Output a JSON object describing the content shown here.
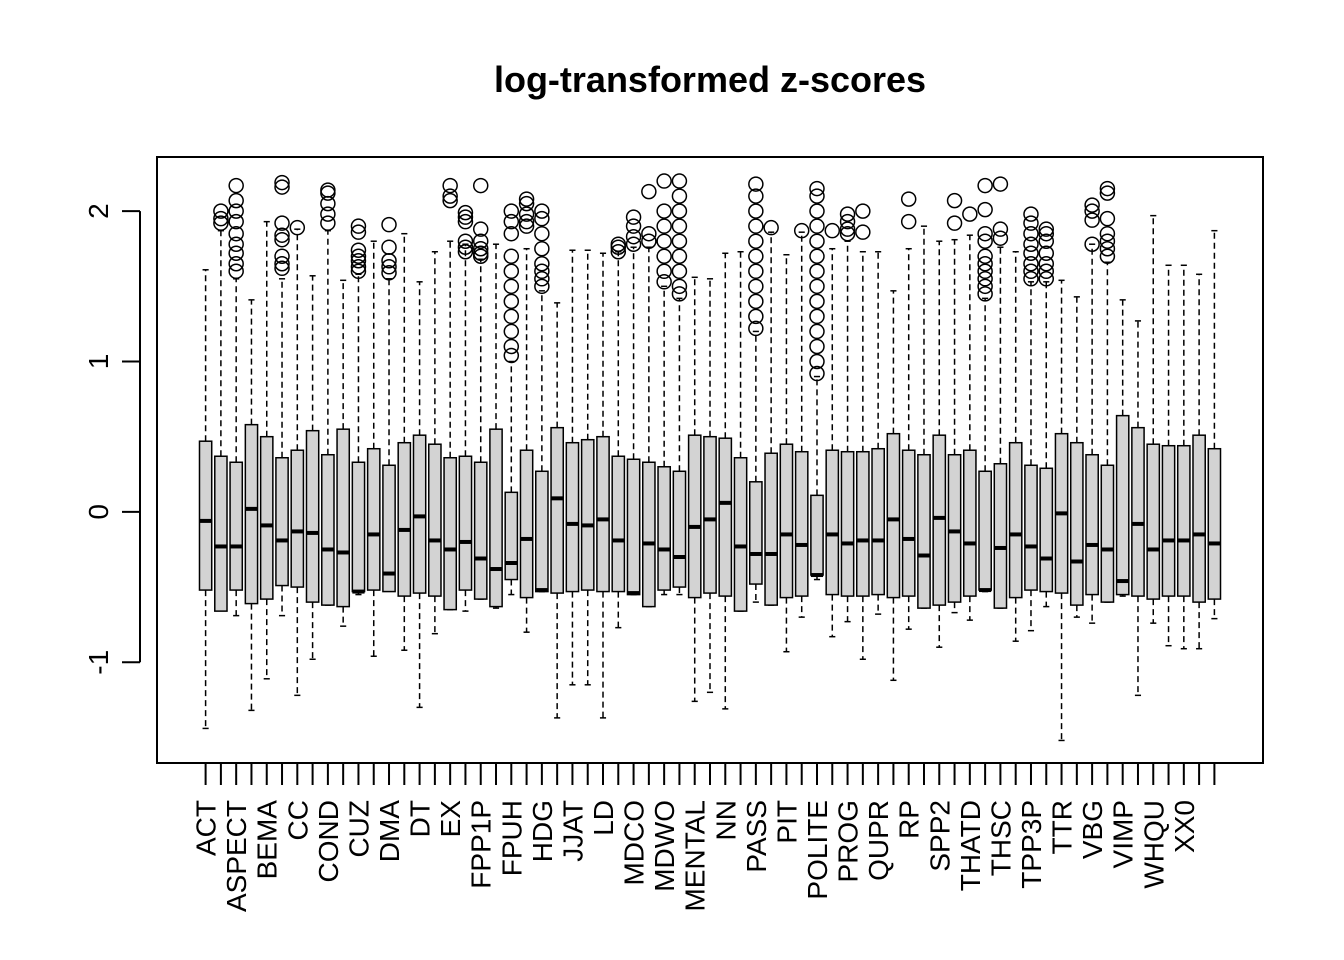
{
  "chart_data": {
    "type": "boxplot",
    "title": "log-transformed z-scores",
    "categories": [
      "ACT",
      null,
      "ASPECT",
      null,
      "BEMA",
      null,
      "CC",
      null,
      "COND",
      null,
      "CUZ",
      null,
      "DMA",
      null,
      "DT",
      null,
      "EX",
      null,
      "FPP1P",
      null,
      "FPUH",
      null,
      "HDG",
      null,
      "JJAT",
      null,
      "LD",
      null,
      "MDCO",
      null,
      "MDWO",
      null,
      "MENTAL",
      null,
      "NN",
      null,
      "PASS",
      null,
      "PIT",
      null,
      "POLITE",
      null,
      "PROG",
      null,
      "QUPR",
      null,
      "RP",
      null,
      "SPP2",
      null,
      "THATD",
      null,
      "THSC",
      null,
      "TPP3P",
      null,
      "TTR",
      null,
      "VBG",
      null,
      "VIMP",
      null,
      "WHQU",
      null,
      "XX0",
      null,
      null
    ],
    "whisker_low": [
      -1.44,
      -0.65,
      -0.69,
      -1.32,
      -1.11,
      -0.69,
      -1.22,
      -0.98,
      -0.62,
      -0.76,
      -0.55,
      -0.96,
      -0.52,
      -0.92,
      -1.3,
      -0.81,
      -0.65,
      -0.66,
      -0.58,
      -0.64,
      -0.55,
      -0.8,
      -0.53,
      -1.37,
      -1.15,
      -1.15,
      -1.37,
      -0.77,
      -0.55,
      -0.63,
      -0.55,
      -0.55,
      -1.26,
      -1.2,
      -1.31,
      -0.66,
      -0.6,
      -0.62,
      -0.93,
      -0.7,
      -0.45,
      -0.83,
      -0.73,
      -0.98,
      -0.68,
      -1.12,
      -0.78,
      -0.64,
      -0.9,
      -0.67,
      -0.72,
      -0.53,
      -0.64,
      -0.86,
      -0.79,
      -0.63,
      -1.52,
      -0.7,
      -0.74,
      -0.6,
      -0.56,
      -1.22,
      -0.74,
      -0.89,
      -0.91,
      -0.91,
      -0.71
    ],
    "q1": [
      -0.52,
      -0.66,
      -0.52,
      -0.61,
      -0.58,
      -0.49,
      -0.5,
      -0.6,
      -0.62,
      -0.63,
      -0.53,
      -0.52,
      -0.53,
      -0.56,
      -0.54,
      -0.56,
      -0.65,
      -0.52,
      -0.58,
      -0.63,
      -0.45,
      -0.57,
      -0.53,
      -0.54,
      -0.53,
      -0.52,
      -0.53,
      -0.53,
      -0.55,
      -0.63,
      -0.52,
      -0.5,
      -0.57,
      -0.54,
      -0.56,
      -0.66,
      -0.48,
      -0.62,
      -0.57,
      -0.56,
      -0.42,
      -0.55,
      -0.56,
      -0.56,
      -0.55,
      -0.57,
      -0.56,
      -0.64,
      -0.62,
      -0.6,
      -0.56,
      -0.52,
      -0.64,
      -0.57,
      -0.52,
      -0.53,
      -0.54,
      -0.62,
      -0.55,
      -0.6,
      -0.55,
      -0.56,
      -0.58,
      -0.56,
      -0.56,
      -0.6,
      -0.58
    ],
    "median": [
      -0.06,
      -0.23,
      -0.23,
      0.02,
      -0.09,
      -0.19,
      -0.13,
      -0.14,
      -0.25,
      -0.27,
      -0.53,
      -0.15,
      -0.41,
      -0.12,
      -0.03,
      -0.19,
      -0.25,
      -0.2,
      -0.31,
      -0.38,
      -0.34,
      -0.18,
      -0.52,
      0.09,
      -0.08,
      -0.09,
      -0.05,
      -0.19,
      -0.54,
      -0.21,
      -0.25,
      -0.3,
      -0.1,
      -0.05,
      0.06,
      -0.23,
      -0.28,
      -0.28,
      -0.15,
      -0.22,
      -0.42,
      -0.15,
      -0.21,
      -0.19,
      -0.19,
      -0.05,
      -0.18,
      -0.29,
      -0.04,
      -0.13,
      -0.21,
      -0.52,
      -0.24,
      -0.15,
      -0.23,
      -0.31,
      -0.01,
      -0.33,
      -0.22,
      -0.25,
      -0.46,
      -0.08,
      -0.25,
      -0.19,
      -0.19,
      -0.15,
      -0.21
    ],
    "q3": [
      0.47,
      0.37,
      0.33,
      0.58,
      0.5,
      0.36,
      0.41,
      0.54,
      0.38,
      0.55,
      0.33,
      0.42,
      0.31,
      0.46,
      0.51,
      0.45,
      0.36,
      0.37,
      0.33,
      0.55,
      0.13,
      0.41,
      0.27,
      0.56,
      0.46,
      0.48,
      0.5,
      0.37,
      0.35,
      0.33,
      0.3,
      0.27,
      0.51,
      0.5,
      0.49,
      0.36,
      0.2,
      0.39,
      0.45,
      0.4,
      0.11,
      0.41,
      0.4,
      0.4,
      0.42,
      0.52,
      0.41,
      0.38,
      0.51,
      0.38,
      0.41,
      0.27,
      0.32,
      0.46,
      0.31,
      0.29,
      0.52,
      0.46,
      0.38,
      0.31,
      0.64,
      0.56,
      0.45,
      0.44,
      0.44,
      0.51,
      0.42
    ],
    "whisker_high": [
      1.61,
      1.87,
      1.55,
      1.41,
      1.93,
      1.55,
      1.88,
      1.57,
      1.87,
      1.54,
      1.58,
      1.8,
      1.55,
      1.85,
      1.53,
      1.73,
      1.8,
      1.78,
      1.68,
      1.78,
      1.0,
      1.75,
      1.47,
      1.39,
      1.74,
      1.74,
      1.72,
      1.73,
      1.76,
      1.76,
      1.5,
      1.42,
      1.56,
      1.55,
      1.72,
      1.73,
      1.2,
      1.86,
      1.71,
      1.86,
      0.9,
      1.75,
      1.8,
      1.73,
      1.73,
      1.47,
      1.75,
      1.9,
      1.8,
      1.81,
      1.84,
      1.42,
      1.76,
      1.73,
      1.53,
      1.53,
      1.54,
      1.43,
      1.78,
      1.66,
      1.41,
      1.27,
      1.97,
      1.64,
      1.64,
      1.58,
      1.87
    ],
    "outliers": [
      [],
      [
        2.0,
        1.95,
        1.92
      ],
      [
        2.17,
        2.07,
        2.0,
        1.93,
        1.85,
        1.78,
        1.72,
        1.65,
        1.6
      ],
      [],
      [],
      [
        2.19,
        2.16,
        1.92,
        1.84,
        1.81,
        1.7,
        1.65,
        1.62
      ],
      [
        1.89
      ],
      [],
      [
        2.14,
        2.12,
        2.05,
        1.98,
        1.92
      ],
      [],
      [
        1.9,
        1.86,
        1.74,
        1.7,
        1.67,
        1.63,
        1.6
      ],
      [],
      [
        1.91,
        1.76,
        1.67,
        1.63,
        1.59
      ],
      [],
      [],
      [],
      [
        2.17,
        2.1,
        2.07
      ],
      [
        1.99,
        1.96,
        1.93,
        1.8,
        1.76,
        1.73
      ],
      [
        2.17,
        1.88,
        1.8,
        1.75,
        1.72,
        1.7
      ],
      [],
      [
        2.0,
        1.93,
        1.85,
        1.7,
        1.6,
        1.5,
        1.4,
        1.3,
        1.2,
        1.1,
        1.04
      ],
      [
        2.08,
        2.05,
        1.98,
        1.93,
        1.9
      ],
      [
        2.0,
        1.95,
        1.85,
        1.75,
        1.65,
        1.6,
        1.55,
        1.5
      ],
      [],
      [],
      [],
      [],
      [
        1.78,
        1.76,
        1.73
      ],
      [
        1.96,
        1.9,
        1.83,
        1.78
      ],
      [
        2.13,
        1.85,
        1.8
      ],
      [
        2.2,
        2.0,
        1.9,
        1.8,
        1.7,
        1.6,
        1.53
      ],
      [
        2.2,
        2.1,
        2.0,
        1.9,
        1.8,
        1.7,
        1.6,
        1.5,
        1.45
      ],
      [],
      [],
      [],
      [],
      [
        2.18,
        2.1,
        2.0,
        1.9,
        1.8,
        1.7,
        1.6,
        1.5,
        1.4,
        1.3,
        1.22
      ],
      [
        1.89
      ],
      [],
      [
        1.87
      ],
      [
        2.15,
        2.1,
        2.0,
        1.9,
        1.8,
        1.7,
        1.6,
        1.5,
        1.4,
        1.3,
        1.2,
        1.1,
        1.0,
        0.92
      ],
      [
        1.87
      ],
      [
        1.98,
        1.93,
        1.88,
        1.85
      ],
      [
        2.0,
        1.86
      ],
      [],
      [],
      [
        2.08,
        1.93
      ],
      [],
      [],
      [
        2.07,
        1.92
      ],
      [
        1.98
      ],
      [
        2.17,
        2.01,
        1.85,
        1.8,
        1.7,
        1.65,
        1.6,
        1.55,
        1.5,
        1.45
      ],
      [
        2.18,
        1.88,
        1.82
      ],
      [],
      [
        1.98,
        1.92,
        1.85,
        1.78,
        1.72,
        1.65,
        1.6,
        1.55
      ],
      [
        1.88,
        1.85,
        1.8,
        1.72,
        1.65,
        1.6,
        1.55
      ],
      [],
      [],
      [
        2.04,
        2.0,
        1.94,
        1.78
      ],
      [
        2.15,
        2.12,
        1.95,
        1.85,
        1.8,
        1.75,
        1.7
      ],
      [],
      [],
      [],
      [],
      [],
      [],
      []
    ],
    "box_color": "#d3d3d3",
    "ylim": [
      -1.67,
      2.36
    ],
    "yticks": [
      -1,
      0,
      1,
      2
    ]
  }
}
